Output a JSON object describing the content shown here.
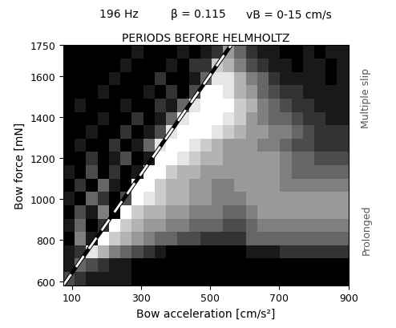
{
  "chart_data": {
    "type": "heatmap",
    "header": [
      "196 Hz",
      "β = 0.115",
      "vB = 0-15 cm/s"
    ],
    "title": "PERIODS BEFORE HELMHOLTZ",
    "side_labels": [
      "Prolonged",
      "Multiple slip"
    ],
    "x_label": "Bow acceleration [cm/s²]",
    "y_label": "Bow force [mN]",
    "xlim": [
      75,
      900
    ],
    "xticks": [
      100,
      300,
      500,
      700,
      900
    ],
    "ylim": [
      580,
      1750
    ],
    "yticks": [
      600,
      800,
      1000,
      1200,
      1400,
      1600,
      1750
    ],
    "zlim": [
      0,
      10
    ],
    "x_edges": [
      75,
      108,
      141,
      174,
      207,
      240,
      273,
      306,
      339,
      372,
      405,
      438,
      471,
      504,
      537,
      570,
      603,
      636,
      669,
      702,
      735,
      768,
      801,
      834,
      867,
      900
    ],
    "y_edges": [
      580,
      645,
      710,
      775,
      840,
      905,
      970,
      1035,
      1100,
      1165,
      1230,
      1295,
      1360,
      1425,
      1490,
      1555,
      1620,
      1685,
      1750
    ],
    "cells": [
      [
        7,
        8,
        9,
        9,
        9,
        9,
        10,
        10,
        10,
        10,
        10,
        10,
        10,
        10,
        10,
        10,
        10,
        10,
        10,
        10,
        10,
        10,
        10,
        10,
        10
      ],
      [
        9,
        6,
        7,
        8,
        9,
        9,
        10,
        10,
        10,
        10,
        10,
        10,
        10,
        10,
        10,
        10,
        10,
        10,
        10,
        10,
        10,
        10,
        10,
        10,
        10
      ],
      [
        9,
        8,
        1,
        3,
        5,
        6,
        7,
        8,
        9,
        10,
        10,
        10,
        10,
        10,
        10,
        10,
        9,
        9,
        9,
        8,
        8,
        8,
        8,
        8,
        8
      ],
      [
        10,
        5,
        9,
        0,
        2,
        3,
        4,
        5,
        6,
        6,
        7,
        7,
        8,
        8,
        8,
        8,
        6,
        6,
        6,
        6,
        6,
        6,
        6,
        6,
        6
      ],
      [
        9,
        6,
        10,
        8,
        0,
        2,
        3,
        4,
        4,
        5,
        5,
        6,
        6,
        6,
        7,
        7,
        6,
        5,
        5,
        5,
        5,
        5,
        5,
        5,
        5
      ],
      [
        10,
        7,
        9,
        5,
        10,
        0,
        2,
        3,
        3,
        4,
        4,
        5,
        5,
        5,
        6,
        6,
        5,
        4,
        4,
        4,
        4,
        4,
        4,
        4,
        4
      ],
      [
        9,
        10,
        6,
        8,
        10,
        7,
        0,
        1,
        2,
        3,
        3,
        4,
        4,
        5,
        5,
        5,
        4,
        4,
        4,
        4,
        4,
        4,
        4,
        4,
        4
      ],
      [
        10,
        8,
        10,
        6,
        9,
        10,
        0,
        0,
        2,
        3,
        3,
        4,
        4,
        5,
        5,
        4,
        4,
        4,
        4,
        5,
        5,
        5,
        5,
        5,
        5
      ],
      [
        9,
        10,
        7,
        10,
        8,
        10,
        9,
        0,
        0,
        2,
        3,
        3,
        4,
        4,
        4,
        4,
        4,
        4,
        4,
        5,
        6,
        6,
        6,
        6,
        6
      ],
      [
        10,
        10,
        8,
        10,
        9,
        7,
        10,
        9,
        0,
        0,
        1,
        2,
        3,
        3,
        4,
        4,
        4,
        4,
        4,
        5,
        6,
        6,
        7,
        7,
        7
      ],
      [
        10,
        9,
        10,
        10,
        8,
        10,
        9,
        6,
        1,
        0,
        0,
        1,
        2,
        3,
        4,
        4,
        4,
        5,
        5,
        6,
        7,
        7,
        8,
        8,
        8
      ],
      [
        10,
        10,
        9,
        10,
        10,
        8,
        10,
        9,
        7,
        1,
        0,
        0,
        0,
        1,
        2,
        3,
        4,
        4,
        5,
        5,
        6,
        7,
        8,
        8,
        8
      ],
      [
        10,
        10,
        10,
        9,
        10,
        10,
        8,
        10,
        9,
        6,
        1,
        0,
        0,
        0,
        1,
        2,
        4,
        5,
        6,
        6,
        7,
        8,
        8,
        9,
        9
      ],
      [
        10,
        9,
        10,
        10,
        10,
        9,
        10,
        10,
        8,
        9,
        6,
        1,
        0,
        0,
        0,
        2,
        3,
        5,
        6,
        7,
        8,
        8,
        9,
        9,
        9
      ],
      [
        10,
        10,
        10,
        9,
        10,
        10,
        10,
        9,
        10,
        8,
        10,
        7,
        0,
        0,
        1,
        3,
        4,
        6,
        7,
        8,
        8,
        9,
        9,
        9,
        9
      ],
      [
        10,
        10,
        10,
        10,
        9,
        10,
        10,
        10,
        8,
        10,
        10,
        9,
        6,
        1,
        1,
        3,
        5,
        6,
        8,
        9,
        9,
        9,
        9,
        10,
        9
      ],
      [
        10,
        10,
        10,
        10,
        10,
        9,
        10,
        10,
        10,
        9,
        10,
        8,
        8,
        2,
        3,
        5,
        7,
        8,
        9,
        9,
        10,
        9,
        9,
        10,
        9
      ],
      [
        10,
        10,
        10,
        10,
        10,
        10,
        9,
        10,
        10,
        10,
        9,
        10,
        9,
        8,
        4,
        6,
        8,
        9,
        9,
        10,
        10,
        9,
        10,
        9,
        9
      ]
    ],
    "lines": [
      {
        "x": [
          75,
          560
        ],
        "y": [
          580,
          1750
        ],
        "line_style": "dashed"
      }
    ]
  }
}
